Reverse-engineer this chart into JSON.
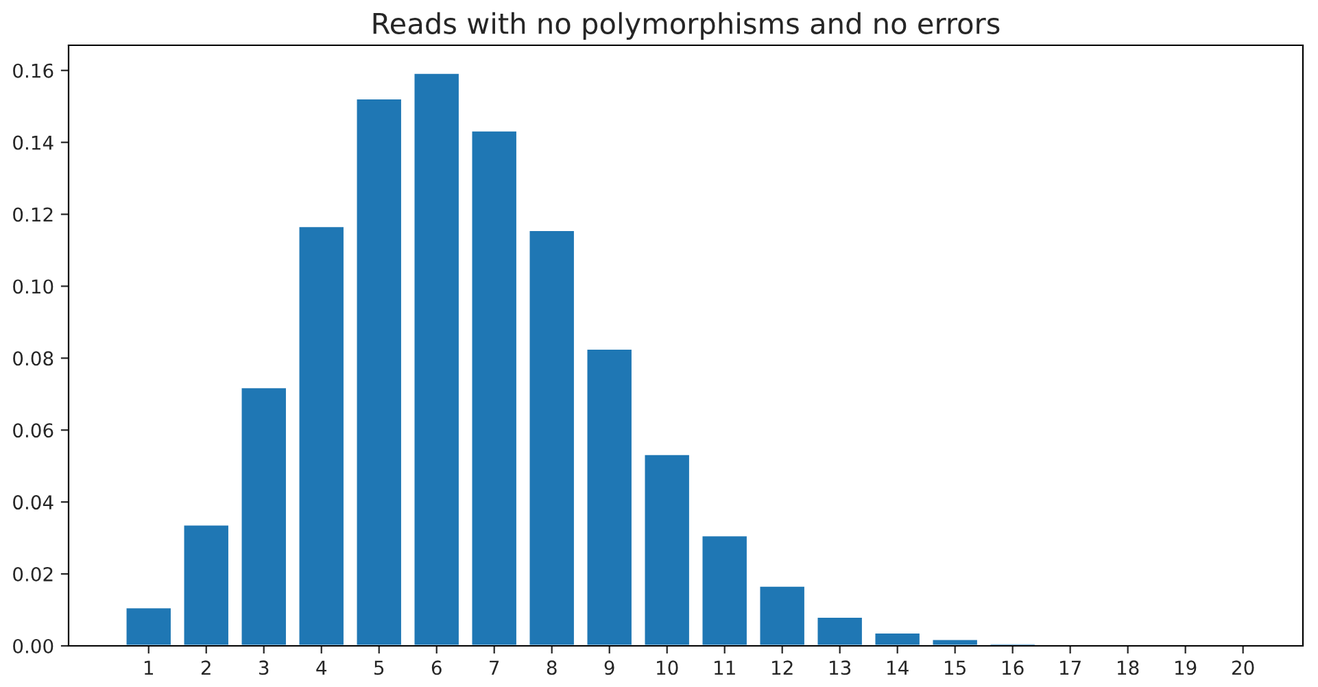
{
  "chart_data": {
    "type": "bar",
    "title": "Reads with no polymorphisms and no errors",
    "x": [
      1,
      2,
      3,
      4,
      5,
      6,
      7,
      8,
      9,
      10,
      11,
      12,
      13,
      14,
      15,
      16,
      17,
      18,
      19,
      20
    ],
    "values": [
      0.0107,
      0.0337,
      0.0719,
      0.1167,
      0.1522,
      0.1593,
      0.1433,
      0.1156,
      0.0826,
      0.0533,
      0.0307,
      0.0167,
      0.0081,
      0.0037,
      0.0019,
      0.0007,
      0.0004,
      0.0001,
      0.0001,
      0.0001
    ],
    "color": "#1f77b4",
    "xlim": [
      -0.39,
      21.04
    ],
    "xticks": [
      1,
      2,
      3,
      4,
      5,
      6,
      7,
      8,
      9,
      10,
      11,
      12,
      13,
      14,
      15,
      16,
      17,
      18,
      19,
      20
    ],
    "ylim": [
      0,
      0.167
    ],
    "yticks": [
      {
        "value": 0,
        "label": "0.00"
      },
      {
        "value": 0.02,
        "label": "0.02"
      },
      {
        "value": 0.04,
        "label": "0.04"
      },
      {
        "value": 0.06,
        "label": "0.06"
      },
      {
        "value": 0.08,
        "label": "0.08"
      },
      {
        "value": 0.1,
        "label": "0.10"
      },
      {
        "value": 0.12,
        "label": "0.12"
      },
      {
        "value": 0.14,
        "label": "0.14"
      },
      {
        "value": 0.16,
        "label": "0.16"
      }
    ],
    "grid": false,
    "legend": false
  }
}
